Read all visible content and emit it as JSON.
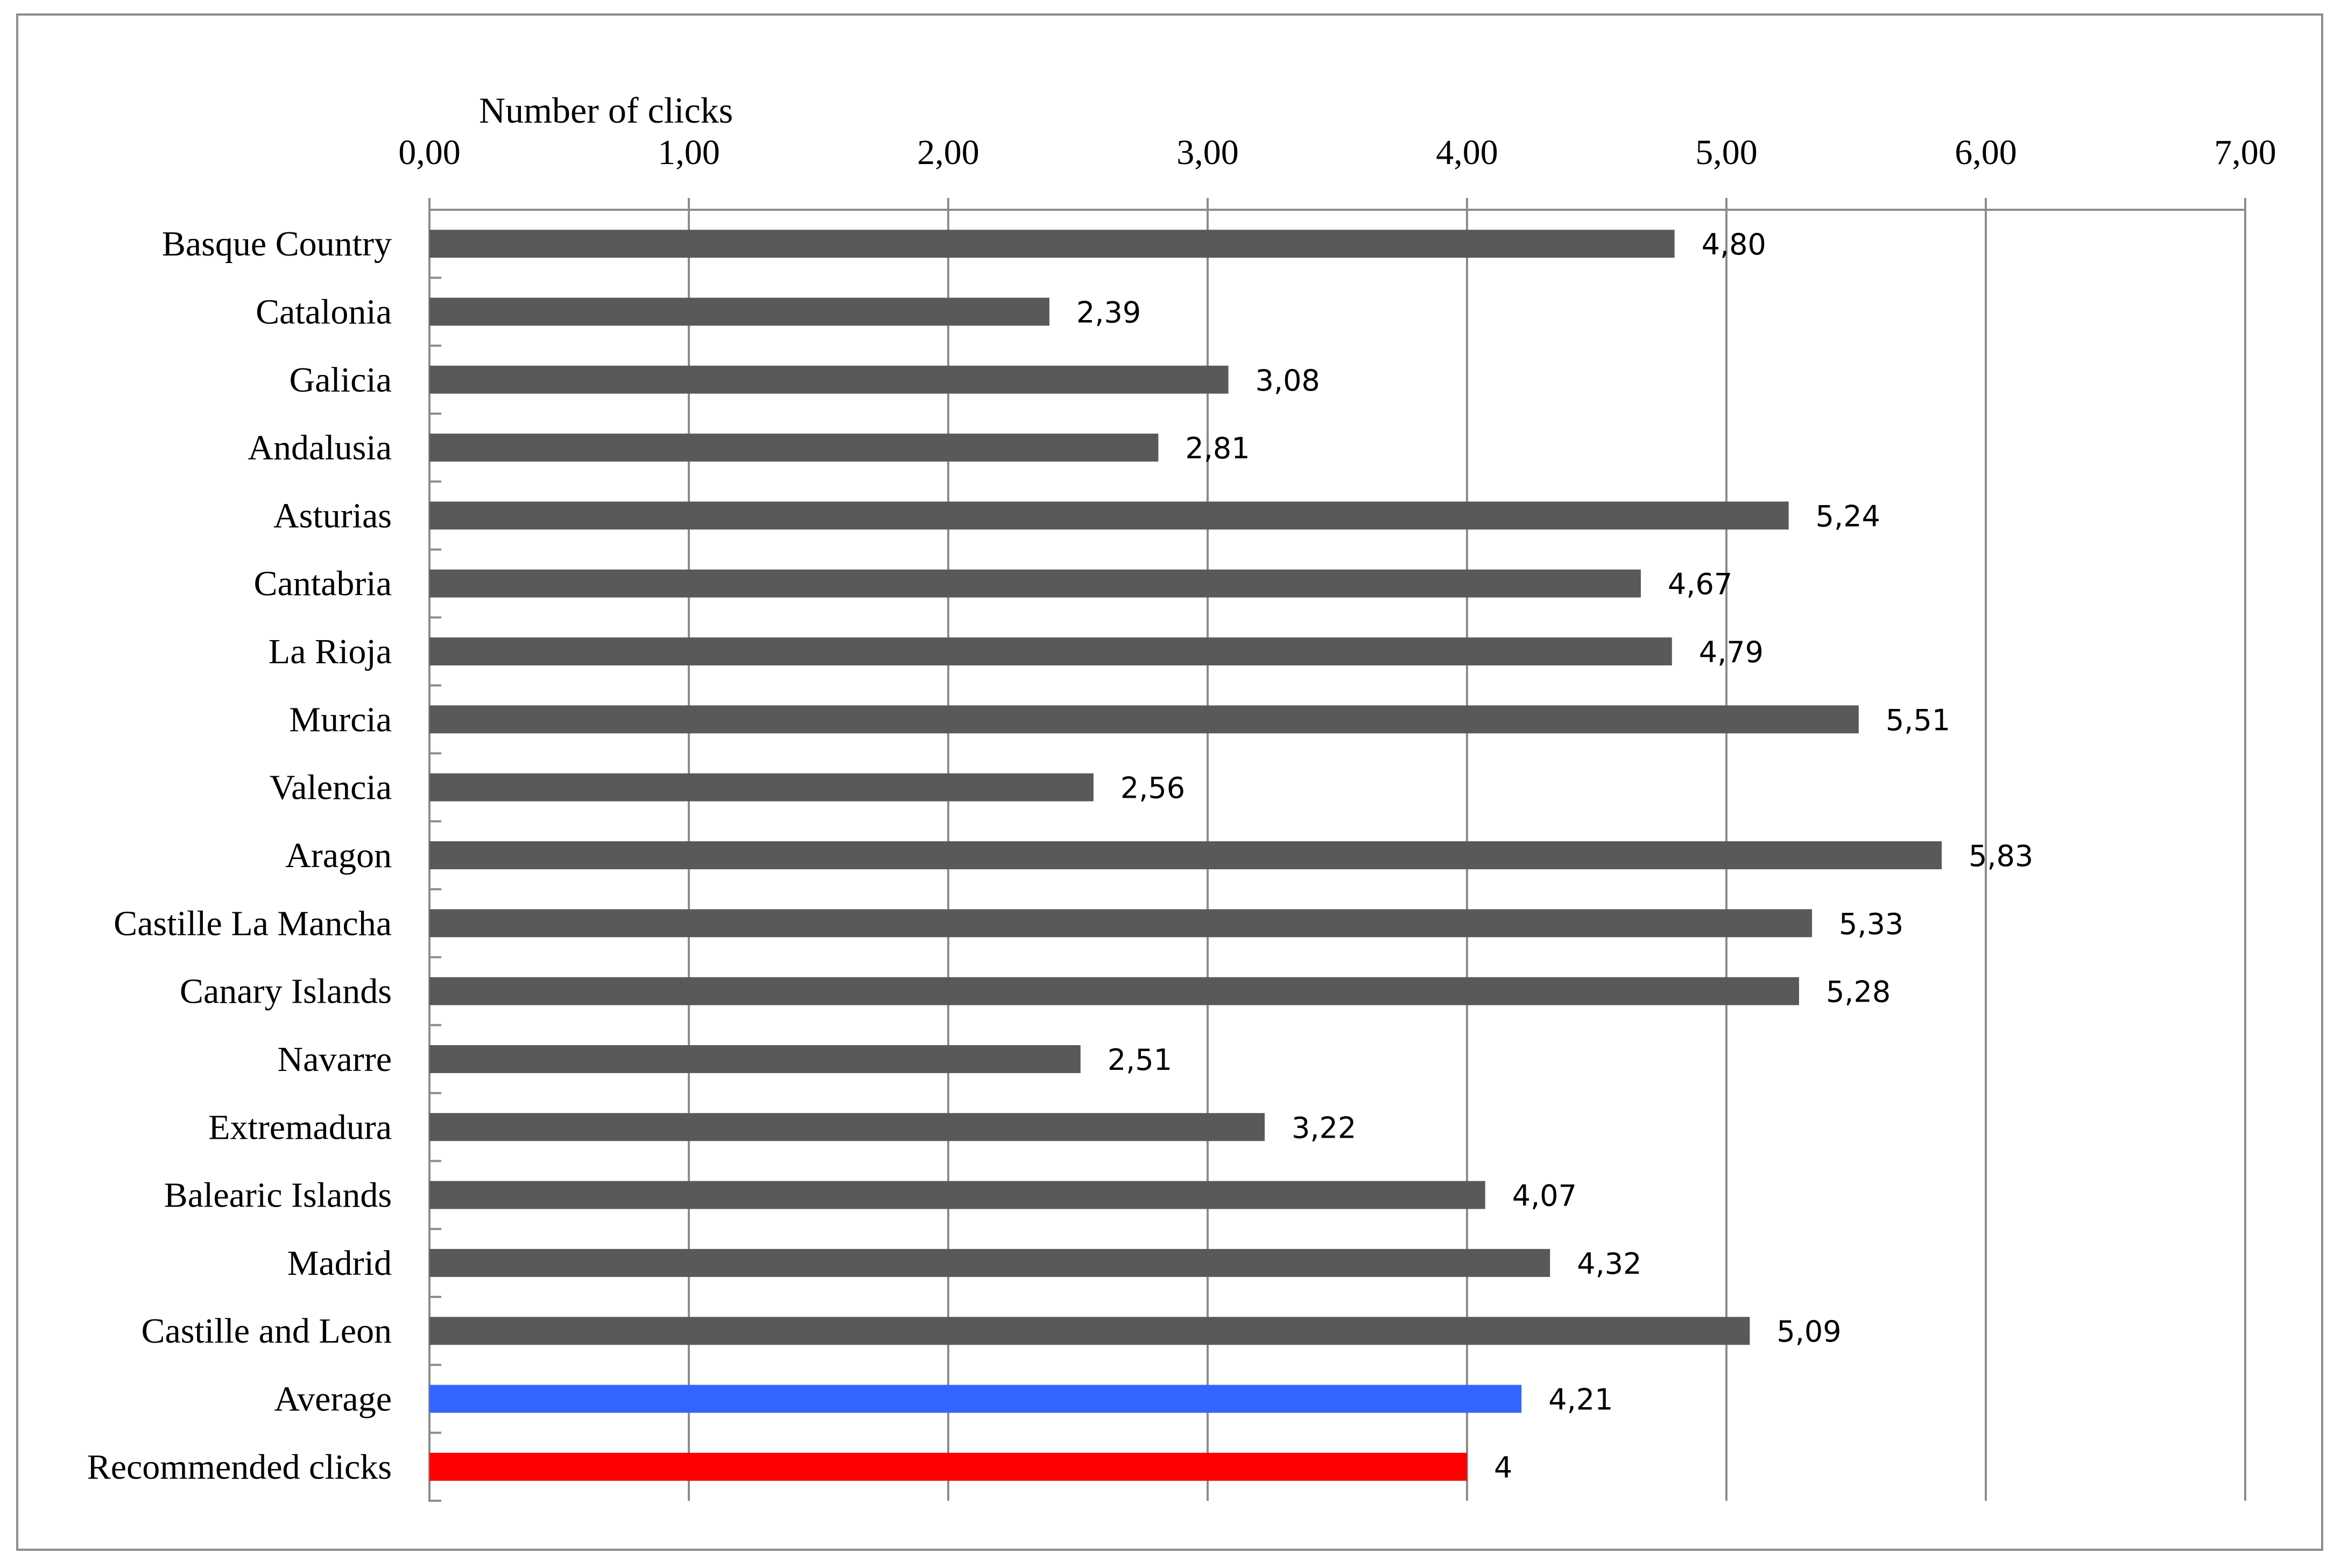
{
  "chart_data": {
    "type": "bar",
    "orientation": "horizontal",
    "title": "",
    "xlabel": "Number of clicks",
    "ylabel": "",
    "xlim": [
      0,
      7
    ],
    "x_ticks": [
      "0,00",
      "1,00",
      "2,00",
      "3,00",
      "4,00",
      "5,00",
      "6,00",
      "7,00"
    ],
    "x_axis_position": "top",
    "grid": true,
    "legend": "none",
    "categories": [
      "Basque Country",
      "Catalonia",
      "Galicia",
      "Andalusia",
      "Asturias",
      "Cantabria",
      "La Rioja",
      "Murcia",
      "Valencia",
      "Aragon",
      "Castille La Mancha",
      "Canary Islands",
      "Navarre",
      "Extremadura",
      "Balearic Islands",
      "Madrid",
      "Castille and Leon",
      "Average",
      "Recommended clicks"
    ],
    "values": [
      4.8,
      2.39,
      3.08,
      2.81,
      5.24,
      4.67,
      4.79,
      5.51,
      2.56,
      5.83,
      5.33,
      5.28,
      2.51,
      3.22,
      4.07,
      4.32,
      5.09,
      4.21,
      4
    ],
    "data_labels": [
      "4,80",
      "2,39",
      "3,08",
      "2,81",
      "5,24",
      "4,67",
      "4,79",
      "5,51",
      "2,56",
      "5,83",
      "5,33",
      "5,28",
      "2,51",
      "3,22",
      "4,07",
      "4,32",
      "5,09",
      "4,21",
      "4"
    ],
    "colors": [
      "#595959",
      "#595959",
      "#595959",
      "#595959",
      "#595959",
      "#595959",
      "#595959",
      "#595959",
      "#595959",
      "#595959",
      "#595959",
      "#595959",
      "#595959",
      "#595959",
      "#595959",
      "#595959",
      "#595959",
      "#3366ff",
      "#ff0000"
    ],
    "gridline_color": "#8c8c8c",
    "text_color": "#000000"
  }
}
